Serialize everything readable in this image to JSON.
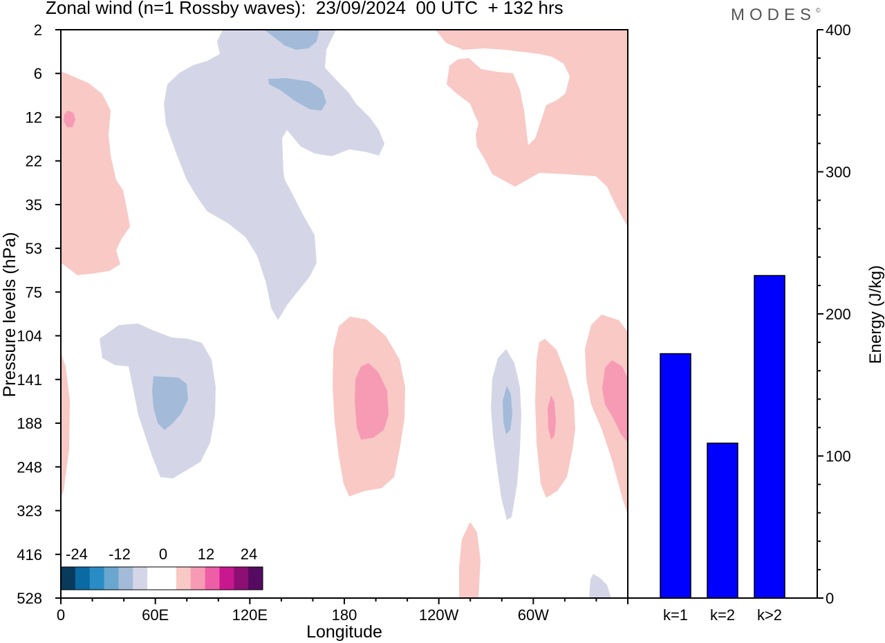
{
  "title": "Zonal wind (n=1 Rossby waves):  23/09/2024  00 UTC  + 132 hrs",
  "logo": "MODES",
  "logo_mark": "©",
  "colors": {
    "positive_1": "#f9c9c6",
    "positive_2": "#f79bb4",
    "negative_1": "#d4d6e8",
    "negative_2": "#a3bbd9",
    "bar_fill": "#0000ff",
    "colorbar": [
      "#083a5c",
      "#0b6aa3",
      "#2a8cc4",
      "#6aa7cf",
      "#a3bbd9",
      "#d4d6e8",
      "#ffffff",
      "#ffffff",
      "#f9c9c6",
      "#f79bb4",
      "#ee5ea7",
      "#c9188f",
      "#8e0f73",
      "#540b61"
    ]
  },
  "chart_data": [
    {
      "type": "heatmap",
      "xlabel": "Longitude",
      "ylabel": "Pressure levels (hPa)",
      "x_tick_labels": [
        "0",
        "60E",
        "120E",
        "180",
        "120W",
        "60W"
      ],
      "y_tick_labels": [
        "2",
        "6",
        "12",
        "22",
        "35",
        "53",
        "75",
        "104",
        "141",
        "188",
        "248",
        "323",
        "416",
        "528"
      ],
      "xlim": [
        0,
        360
      ],
      "colorbar_labels": [
        "-24",
        "-12",
        "0",
        "12",
        "24"
      ],
      "colorbar_range": [
        -24,
        24
      ],
      "features": [
        {
          "name": "Upper-left positive region",
          "sign": "positive",
          "lon": [
            0,
            45
          ],
          "levels": "6-60"
        },
        {
          "name": "Upper-level negative region",
          "sign": "negative",
          "lon": [
            60,
            205
          ],
          "levels": "2-95"
        },
        {
          "name": "Upper-right positive region",
          "sign": "positive",
          "lon": [
            240,
            360
          ],
          "levels": "2-40"
        },
        {
          "name": "Lower negative region 70E",
          "sign": "negative",
          "lon": [
            25,
            100
          ],
          "levels": "110-260"
        },
        {
          "name": "Positive region 190",
          "sign": "positive",
          "lon": [
            170,
            220
          ],
          "levels": "95-320"
        },
        {
          "name": "Negative region 85W",
          "sign": "negative",
          "lon": [
            274,
            290
          ],
          "levels": "125-380"
        },
        {
          "name": "Positive region 60W",
          "sign": "positive",
          "lon": [
            303,
            323
          ],
          "levels": "110-320"
        },
        {
          "name": "Positive region 20W",
          "sign": "positive",
          "lon": [
            334,
            360
          ],
          "levels": "100-340"
        }
      ]
    },
    {
      "type": "bar",
      "categories": [
        "k=1",
        "k=2",
        "k>2"
      ],
      "values": [
        172,
        109,
        227
      ],
      "ylabel": "Energy (J/kg)",
      "ylim": [
        0,
        400
      ],
      "y_tick_labels": [
        "0",
        "100",
        "200",
        "300",
        "400"
      ]
    }
  ]
}
